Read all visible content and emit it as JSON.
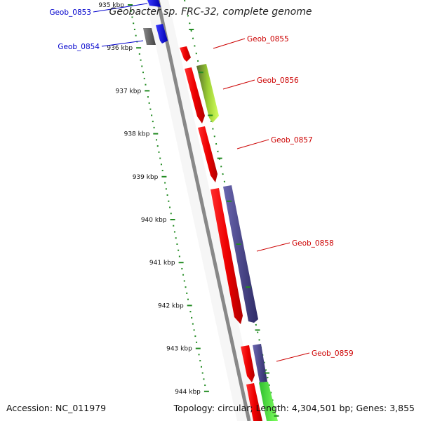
{
  "title": "Geobacter sp. FRC-32, complete genome",
  "accession_text": "Accession: NC_011979",
  "topology_text": "Topology: circular; Length: 4,304,501 bp; Genes: 3,855",
  "ruler_ticks": [
    {
      "kbp": 935,
      "label": "935 kbp"
    },
    {
      "kbp": 936,
      "label": "936 kbp"
    },
    {
      "kbp": 937,
      "label": "937 kbp"
    },
    {
      "kbp": 938,
      "label": "938 kbp"
    },
    {
      "kbp": 939,
      "label": "939 kbp"
    },
    {
      "kbp": 940,
      "label": "940 kbp"
    },
    {
      "kbp": 941,
      "label": "941 kbp"
    },
    {
      "kbp": 942,
      "label": "942 kbp"
    },
    {
      "kbp": 943,
      "label": "943 kbp"
    },
    {
      "kbp": 944,
      "label": "944 kbp"
    }
  ],
  "gene_labels": [
    {
      "name": "Geob_0853",
      "strand": "minus",
      "color": "#0000cc"
    },
    {
      "name": "Geob_0854",
      "strand": "minus",
      "color": "#0000cc"
    },
    {
      "name": "Geob_0855",
      "strand": "plus",
      "color": "#cc0000"
    },
    {
      "name": "Geob_0856",
      "strand": "plus",
      "color": "#cc0000"
    },
    {
      "name": "Geob_0857",
      "strand": "plus",
      "color": "#cc0000"
    },
    {
      "name": "Geob_0858",
      "strand": "plus",
      "color": "#cc0000"
    },
    {
      "name": "Geob_0859",
      "strand": "plus",
      "color": "#cc0000"
    }
  ],
  "colors": {
    "gene_minus": "#0000ee",
    "gene_plus": "#ee0000",
    "cds_purple": "#46428a",
    "cds_green": "#9acd32",
    "grey_feature": "#666666",
    "backbone": "#888888",
    "ruler_dots": "#228b22"
  }
}
